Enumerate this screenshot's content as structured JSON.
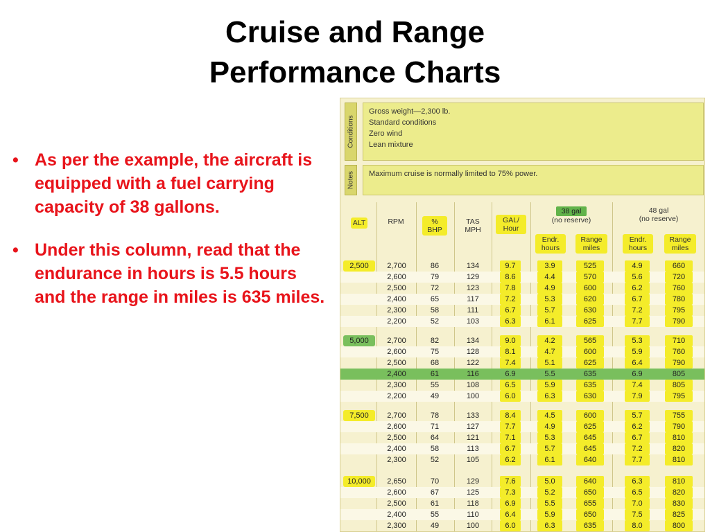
{
  "slide": {
    "title_line1": "Cruise and Range",
    "title_line2": "Performance Charts",
    "bullets": [
      "As per the example, the aircraft is equipped with a fuel carrying capacity of 38 gallons.",
      "Under this column, read that the endurance in hours is 5.5 hours and the range in miles is 635 miles."
    ]
  },
  "chart": {
    "conditions_label": "Conditions",
    "conditions": [
      "Gross weight—2,300 lb.",
      "Standard conditions",
      "Zero wind",
      "Lean mixture"
    ],
    "notes_label": "Notes",
    "note": "Maximum cruise is normally limited to 75% power.",
    "headers": {
      "alt": "ALT",
      "rpm": "RPM",
      "bhp": "% BHP",
      "tas": "TAS MPH",
      "gal": "GAL/ Hour",
      "g38": "38 gal",
      "g38_sub": "(no reserve)",
      "g48": "48 gal",
      "g48_sub": "(no reserve)",
      "endr": "Endr. hours",
      "range": "Range miles"
    },
    "groups": [
      {
        "alt": "2,500",
        "rows": [
          [
            "2,700",
            "86",
            "134",
            "9.7",
            "3.9",
            "525",
            "4.9",
            "660"
          ],
          [
            "2,600",
            "79",
            "129",
            "8.6",
            "4.4",
            "570",
            "5.6",
            "720"
          ],
          [
            "2,500",
            "72",
            "123",
            "7.8",
            "4.9",
            "600",
            "6.2",
            "760"
          ],
          [
            "2,400",
            "65",
            "117",
            "7.2",
            "5.3",
            "620",
            "6.7",
            "780"
          ],
          [
            "2,300",
            "58",
            "111",
            "6.7",
            "5.7",
            "630",
            "7.2",
            "795"
          ],
          [
            "2,200",
            "52",
            "103",
            "6.3",
            "6.1",
            "625",
            "7.7",
            "790"
          ]
        ]
      },
      {
        "alt": "5,000",
        "rows": [
          [
            "2,700",
            "82",
            "134",
            "9.0",
            "4.2",
            "565",
            "5.3",
            "710"
          ],
          [
            "2,600",
            "75",
            "128",
            "8.1",
            "4.7",
            "600",
            "5.9",
            "760"
          ],
          [
            "2,500",
            "68",
            "122",
            "7.4",
            "5.1",
            "625",
            "6.4",
            "790"
          ],
          [
            "2,400",
            "61",
            "116",
            "6.9",
            "5.5",
            "635",
            "6.9",
            "805"
          ],
          [
            "2,300",
            "55",
            "108",
            "6.5",
            "5.9",
            "635",
            "7.4",
            "805"
          ],
          [
            "2,200",
            "49",
            "100",
            "6.0",
            "6.3",
            "630",
            "7.9",
            "795"
          ]
        ]
      },
      {
        "alt": "7,500",
        "rows": [
          [
            "2,700",
            "78",
            "133",
            "8.4",
            "4.5",
            "600",
            "5.7",
            "755"
          ],
          [
            "2,600",
            "71",
            "127",
            "7.7",
            "4.9",
            "625",
            "6.2",
            "790"
          ],
          [
            "2,500",
            "64",
            "121",
            "7.1",
            "5.3",
            "645",
            "6.7",
            "810"
          ],
          [
            "2,400",
            "58",
            "113",
            "6.7",
            "5.7",
            "645",
            "7.2",
            "820"
          ],
          [
            "2,300",
            "52",
            "105",
            "6.2",
            "6.1",
            "640",
            "7.7",
            "810"
          ]
        ]
      },
      {
        "alt": "10,000",
        "rows": [
          [
            "2,650",
            "70",
            "129",
            "7.6",
            "5.0",
            "640",
            "6.3",
            "810"
          ],
          [
            "2,600",
            "67",
            "125",
            "7.3",
            "5.2",
            "650",
            "6.5",
            "820"
          ],
          [
            "2,500",
            "61",
            "118",
            "6.9",
            "5.5",
            "655",
            "7.0",
            "830"
          ],
          [
            "2,400",
            "55",
            "110",
            "6.4",
            "5.9",
            "650",
            "7.5",
            "825"
          ],
          [
            "2,300",
            "49",
            "100",
            "6.0",
            "6.3",
            "635",
            "8.0",
            "800"
          ]
        ]
      }
    ],
    "selected": {
      "group": 1,
      "row": 3
    }
  }
}
